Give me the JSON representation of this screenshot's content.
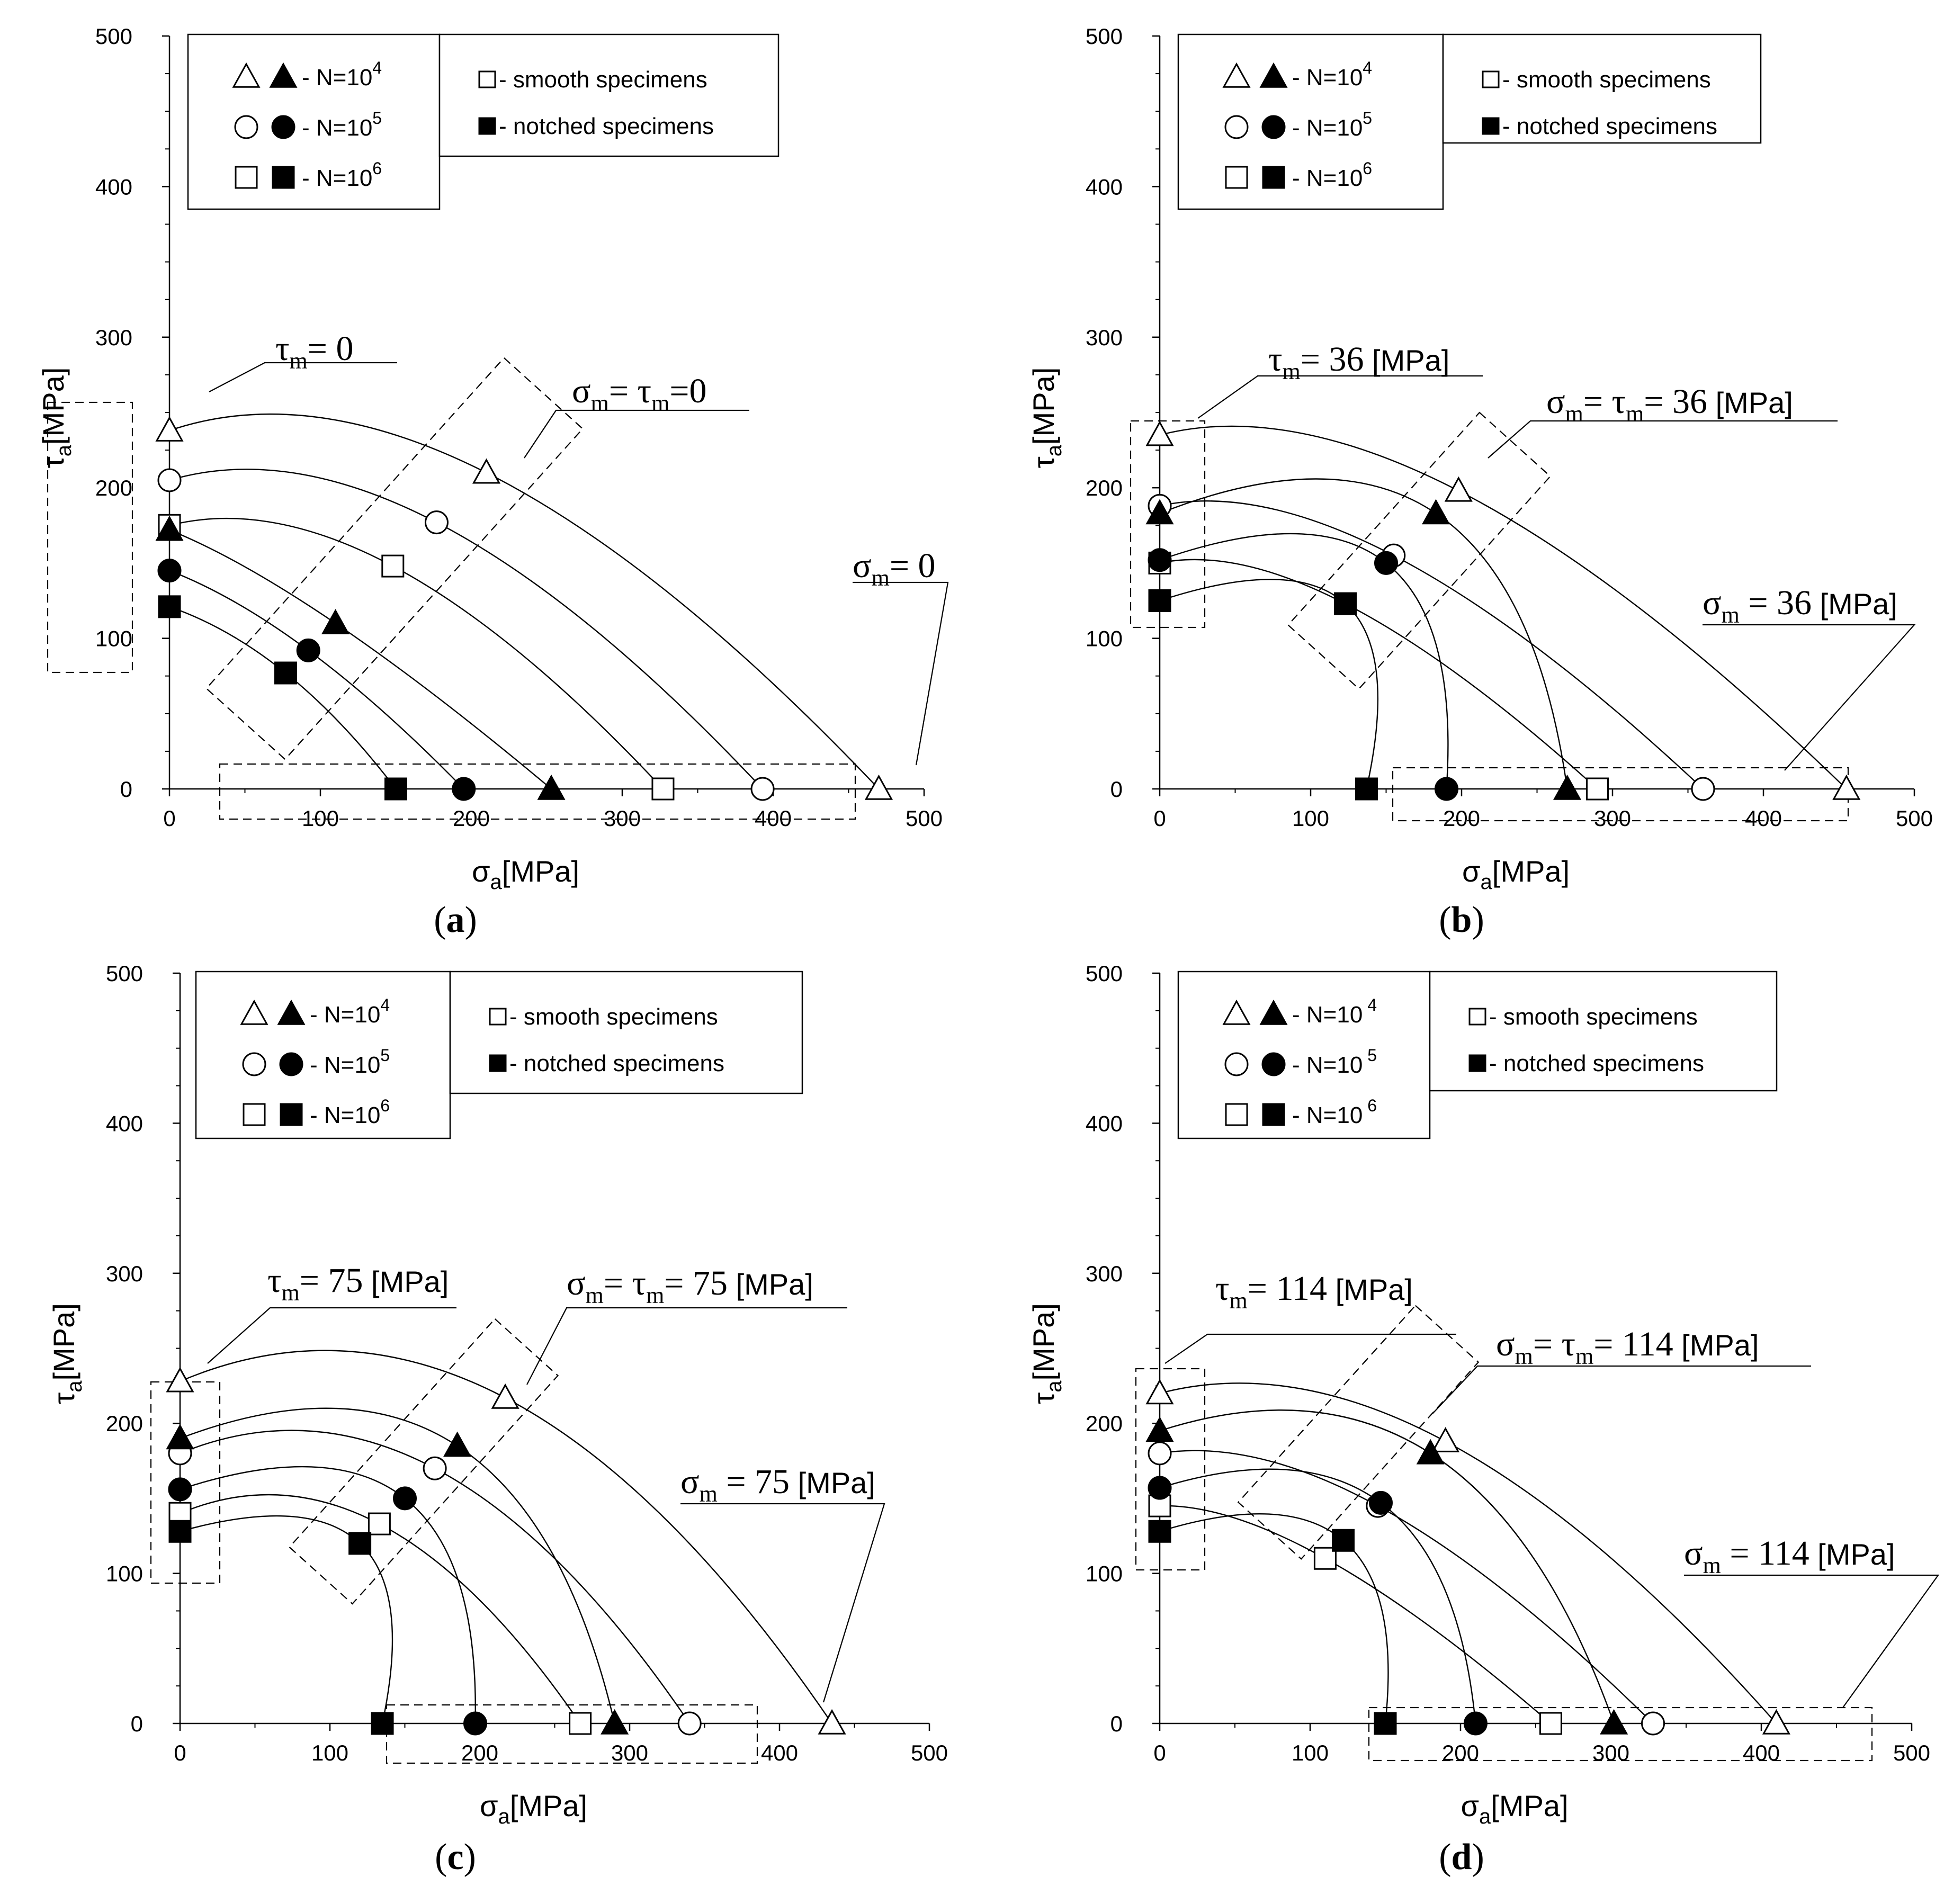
{
  "chart_data": [
    {
      "id": "a",
      "type": "scatter",
      "panel_label": "a",
      "xlabel": "σ",
      "xlabel_sub": "a",
      "xlabel_unit": "[MPa]",
      "ylabel": "τ",
      "ylabel_sub": "a",
      "ylabel_unit": "[MPa]",
      "xlim": [
        0,
        500
      ],
      "ylim": [
        0,
        500
      ],
      "xticks": [
        "0",
        "100",
        "200",
        "300",
        "400",
        "500"
      ],
      "yticks": [
        "0",
        "100",
        "200",
        "300",
        "400",
        "500"
      ],
      "legend": {
        "rows": [
          {
            "label": " - N=10",
            "exp": "4",
            "marker": "triangle"
          },
          {
            "label": " - N=10",
            "exp": "5",
            "marker": "circle"
          },
          {
            "label": " - N=10",
            "exp": "6",
            "marker": "square"
          }
        ],
        "types": [
          {
            "label": " - smooth specimens",
            "filled": false
          },
          {
            "label": " - notched specimens",
            "filled": true
          }
        ]
      },
      "annotations": [
        {
          "main": "τ",
          "sub": "m",
          "text": "= 0",
          "unit": ""
        },
        {
          "main": "σ",
          "sub": "m",
          "text": "= τ",
          "sub2": "m",
          "text2": "=0",
          "unit": ""
        },
        {
          "main": "σ",
          "sub": "m",
          "text": "= 0",
          "unit": ""
        }
      ],
      "series": [
        {
          "name": "N=10^4 smooth",
          "marker": "triangle",
          "filled": false,
          "points": [
            [
              0,
              238
            ],
            [
              210,
              210
            ],
            [
              470,
              0
            ]
          ]
        },
        {
          "name": "N=10^5 smooth",
          "marker": "circle",
          "filled": false,
          "points": [
            [
              0,
              205
            ],
            [
              177,
              177
            ],
            [
              393,
              0
            ]
          ]
        },
        {
          "name": "N=10^6 smooth",
          "marker": "square",
          "filled": false,
          "points": [
            [
              0,
              175
            ],
            [
              148,
              148
            ],
            [
              327,
              0
            ]
          ]
        },
        {
          "name": "N=10^4 notched",
          "marker": "triangle",
          "filled": true,
          "points": [
            [
              0,
              172
            ],
            [
              110,
              110
            ],
            [
              253,
              0
            ]
          ]
        },
        {
          "name": "N=10^5 notched",
          "marker": "circle",
          "filled": true,
          "points": [
            [
              0,
              145
            ],
            [
              92,
              92
            ],
            [
              195,
              0
            ]
          ]
        },
        {
          "name": "N=10^6 notched",
          "marker": "square",
          "filled": true,
          "points": [
            [
              0,
              121
            ],
            [
              77,
              77
            ],
            [
              150,
              0
            ]
          ]
        }
      ]
    },
    {
      "id": "b",
      "type": "scatter",
      "panel_label": "b",
      "xlabel": "σ",
      "xlabel_sub": "a",
      "xlabel_unit": "[MPa]",
      "ylabel": "τ",
      "ylabel_sub": "a",
      "ylabel_unit": "[MPa]",
      "xlim": [
        0,
        500
      ],
      "ylim": [
        0,
        500
      ],
      "xticks": [
        "0",
        "100",
        "200",
        "300",
        "400",
        "500"
      ],
      "yticks": [
        "0",
        "100",
        "200",
        "300",
        "400",
        "500"
      ],
      "legend": {
        "rows": [
          {
            "label": " - N=10",
            "exp": "4",
            "marker": "triangle"
          },
          {
            "label": " - N=10",
            "exp": "5",
            "marker": "circle"
          },
          {
            "label": " - N=10",
            "exp": "6",
            "marker": "square"
          }
        ],
        "types": [
          {
            "label": " - smooth specimens",
            "filled": false
          },
          {
            "label": " - notched specimens",
            "filled": true
          }
        ]
      },
      "annotations": [
        {
          "main": "τ",
          "sub": "m",
          "text": "= 36",
          "unit": " [MPa]"
        },
        {
          "main": "σ",
          "sub": "m",
          "text": "= τ",
          "sub2": "m",
          "text2": "= 36",
          "unit": " [MPa]"
        },
        {
          "main": "σ",
          "sub": "m",
          "text": " = 36",
          "unit": " [MPa]"
        }
      ],
      "series": [
        {
          "name": "N=10^4 smooth",
          "marker": "triangle",
          "filled": false,
          "points": [
            [
              0,
              235
            ],
            [
              198,
              198
            ],
            [
              455,
              0
            ]
          ]
        },
        {
          "name": "N=10^5 smooth",
          "marker": "circle",
          "filled": false,
          "points": [
            [
              0,
              188
            ],
            [
              155,
              155
            ],
            [
              360,
              0
            ]
          ]
        },
        {
          "name": "N=10^6 smooth",
          "marker": "square",
          "filled": false,
          "points": [
            [
              0,
              150
            ],
            [
              123,
              123
            ],
            [
              290,
              0
            ]
          ]
        },
        {
          "name": "N=10^4 notched",
          "marker": "triangle",
          "filled": true,
          "points": [
            [
              0,
              183
            ],
            [
              183,
              183
            ],
            [
              270,
              0
            ]
          ]
        },
        {
          "name": "N=10^5 notched",
          "marker": "circle",
          "filled": true,
          "points": [
            [
              0,
              152
            ],
            [
              150,
              150
            ],
            [
              190,
              0
            ]
          ]
        },
        {
          "name": "N=10^6 notched",
          "marker": "square",
          "filled": true,
          "points": [
            [
              0,
              125
            ],
            [
              123,
              123
            ],
            [
              137,
              0
            ]
          ]
        }
      ]
    },
    {
      "id": "c",
      "type": "scatter",
      "panel_label": "c",
      "xlabel": "σ",
      "xlabel_sub": "a",
      "xlabel_unit": "[MPa]",
      "ylabel": "τ",
      "ylabel_sub": "a",
      "ylabel_unit": "[MPa]",
      "xlim": [
        0,
        500
      ],
      "ylim": [
        0,
        500
      ],
      "xticks": [
        "0",
        "100",
        "200",
        "300",
        "400",
        "500"
      ],
      "yticks": [
        "0",
        "100",
        "200",
        "300",
        "400",
        "500"
      ],
      "legend": {
        "rows": [
          {
            "label": " - N=10",
            "exp": "4",
            "marker": "triangle"
          },
          {
            "label": " - N=10",
            "exp": "5",
            "marker": "circle"
          },
          {
            "label": " - N=10",
            "exp": "6",
            "marker": "square"
          }
        ],
        "types": [
          {
            "label": " - smooth specimens",
            "filled": false
          },
          {
            "label": " - notched specimens",
            "filled": true
          }
        ]
      },
      "annotations": [
        {
          "main": "τ",
          "sub": "m",
          "text": "= 75",
          "unit": " [MPa]"
        },
        {
          "main": "σ",
          "sub": "m",
          "text": "= τ",
          "sub2": "m",
          "text2": "= 75",
          "unit": " [MPa]"
        },
        {
          "main": "σ",
          "sub": "m",
          "text": " = 75",
          "unit": " [MPa]"
        }
      ],
      "series": [
        {
          "name": "N=10^4 smooth",
          "marker": "triangle",
          "filled": false,
          "points": [
            [
              0,
              228
            ],
            [
              217,
              217
            ],
            [
              435,
              0
            ]
          ]
        },
        {
          "name": "N=10^5 smooth",
          "marker": "circle",
          "filled": false,
          "points": [
            [
              0,
              180
            ],
            [
              170,
              170
            ],
            [
              340,
              0
            ]
          ]
        },
        {
          "name": "N=10^6 smooth",
          "marker": "square",
          "filled": false,
          "points": [
            [
              0,
              140
            ],
            [
              133,
              133
            ],
            [
              267,
              0
            ]
          ]
        },
        {
          "name": "N=10^4 notched",
          "marker": "triangle",
          "filled": true,
          "points": [
            [
              0,
              190
            ],
            [
              185,
              185
            ],
            [
              290,
              0
            ]
          ]
        },
        {
          "name": "N=10^5 notched",
          "marker": "circle",
          "filled": true,
          "points": [
            [
              0,
              156
            ],
            [
              150,
              150
            ],
            [
              197,
              0
            ]
          ]
        },
        {
          "name": "N=10^6 notched",
          "marker": "square",
          "filled": true,
          "points": [
            [
              0,
              128
            ],
            [
              120,
              120
            ],
            [
              135,
              0
            ]
          ]
        }
      ]
    },
    {
      "id": "d",
      "type": "scatter",
      "panel_label": "d",
      "xlabel": "σ",
      "xlabel_sub": "a",
      "xlabel_unit": "[MPa]",
      "ylabel": "τ",
      "ylabel_sub": "a",
      "ylabel_unit": "[MPa]",
      "xlim": [
        0,
        500
      ],
      "ylim": [
        0,
        500
      ],
      "xticks": [
        "0",
        "100",
        "200",
        "300",
        "400",
        "500"
      ],
      "yticks": [
        "0",
        "100",
        "200",
        "300",
        "400",
        "500"
      ],
      "legend": {
        "rows": [
          {
            "label": " - N=10",
            "exp": " 4",
            "marker": "triangle"
          },
          {
            "label": " - N=10",
            "exp": " 5",
            "marker": "circle"
          },
          {
            "label": " - N=10",
            "exp": " 6",
            "marker": "square"
          }
        ],
        "types": [
          {
            "label": " - smooth specimens",
            "filled": false
          },
          {
            "label": " - notched specimens",
            "filled": true
          }
        ]
      },
      "annotations": [
        {
          "main": "τ",
          "sub": "m",
          "text": "= 114",
          "unit": " [MPa]"
        },
        {
          "main": "σ",
          "sub": "m",
          "text": "= τ",
          "sub2": "m",
          "text2": "= 114",
          "unit": " [MPa]"
        },
        {
          "main": "σ",
          "sub": "m",
          "text": " = 114",
          "unit": " [MPa]"
        }
      ],
      "series": [
        {
          "name": "N=10^4 smooth",
          "marker": "triangle",
          "filled": false,
          "points": [
            [
              0,
              220
            ],
            [
              190,
              188
            ],
            [
              410,
              0
            ]
          ]
        },
        {
          "name": "N=10^5 smooth",
          "marker": "circle",
          "filled": false,
          "points": [
            [
              0,
              180
            ],
            [
              145,
              145
            ],
            [
              328,
              0
            ]
          ]
        },
        {
          "name": "N=10^6 smooth",
          "marker": "square",
          "filled": false,
          "points": [
            [
              0,
              145
            ],
            [
              110,
              110
            ],
            [
              260,
              0
            ]
          ]
        },
        {
          "name": "N=10^4 notched",
          "marker": "triangle",
          "filled": true,
          "points": [
            [
              0,
              195
            ],
            [
              180,
              180
            ],
            [
              302,
              0
            ]
          ]
        },
        {
          "name": "N=10^5 notched",
          "marker": "circle",
          "filled": true,
          "points": [
            [
              0,
              157
            ],
            [
              147,
              147
            ],
            [
              210,
              0
            ]
          ]
        },
        {
          "name": "N=10^6 notched",
          "marker": "square",
          "filled": true,
          "points": [
            [
              0,
              128
            ],
            [
              122,
              122
            ],
            [
              150,
              0
            ]
          ]
        }
      ]
    }
  ]
}
